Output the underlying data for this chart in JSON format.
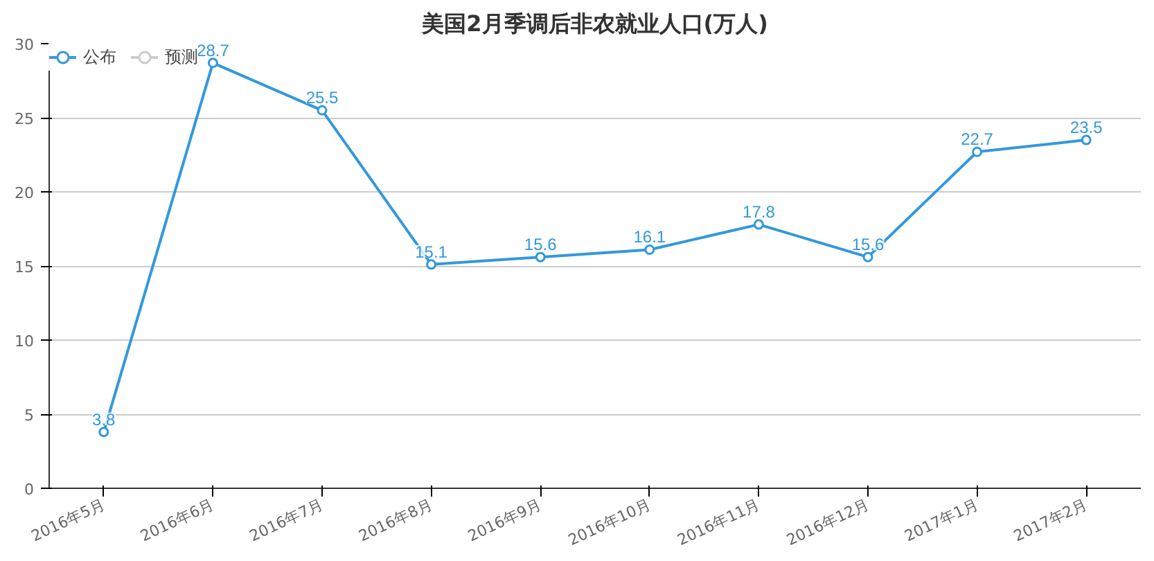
{
  "chart_data": {
    "type": "line",
    "title": "美国2月季调后非农就业人口(万人)",
    "categories": [
      "2016年5月",
      "2016年6月",
      "2016年7月",
      "2016年8月",
      "2016年9月",
      "2016年10月",
      "2016年11月",
      "2016年12月",
      "2017年1月",
      "2017年2月"
    ],
    "series": [
      {
        "name": "公布",
        "color": "#3398db",
        "values": [
          3.8,
          28.7,
          25.5,
          15.1,
          15.6,
          16.1,
          17.8,
          15.6,
          22.7,
          23.5
        ]
      },
      {
        "name": "预测",
        "color": "#cccccc",
        "values": [
          null,
          null,
          null,
          null,
          null,
          null,
          null,
          null,
          null,
          null
        ]
      }
    ],
    "ylim": [
      0,
      30
    ],
    "yticks": [
      0,
      5,
      10,
      15,
      20,
      25,
      30
    ],
    "grid": "y",
    "legend": "top left",
    "marker": "circle",
    "data_labels": true
  }
}
